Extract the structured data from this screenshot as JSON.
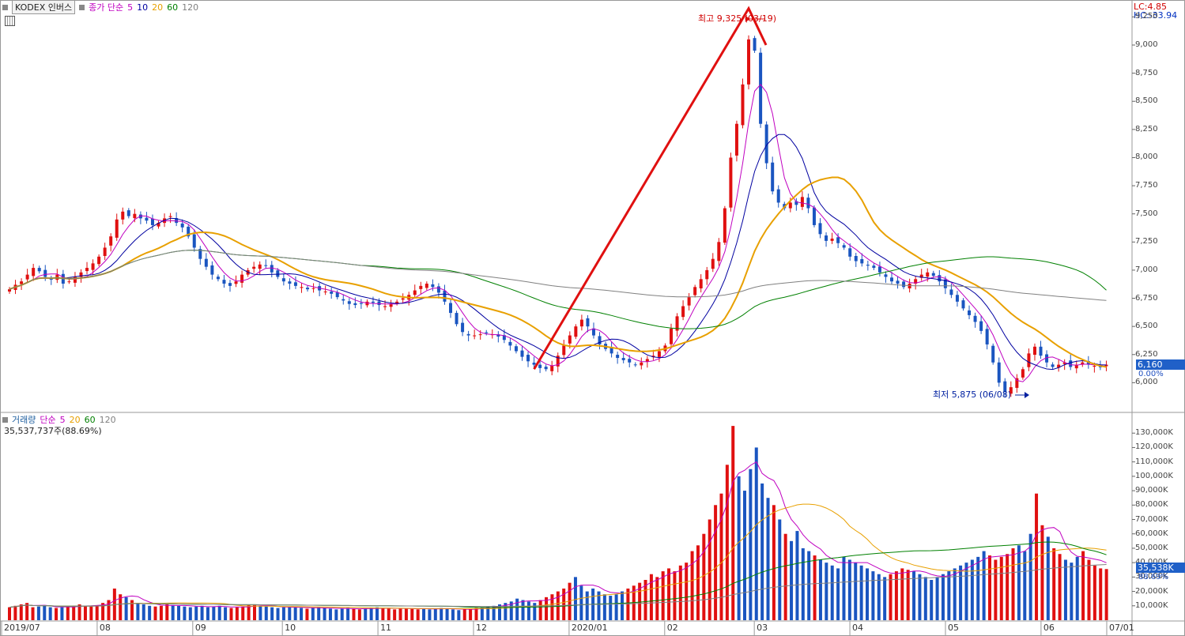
{
  "price_panel": {
    "title": "KODEX 인버스",
    "ma_label": "종가 단순",
    "ma_periods": [
      {
        "label": "5",
        "color": "#c000c0"
      },
      {
        "label": "10",
        "color": "#0000a0"
      },
      {
        "label": "20",
        "color": "#e8a000"
      },
      {
        "label": "60",
        "color": "#008000"
      },
      {
        "label": "120",
        "color": "#808080"
      }
    ],
    "lc_label": "LC:4.85",
    "hc_label": "HC:-33.94",
    "current_price": "6,160",
    "current_change": "0.00%",
    "high_annotation": "최고 9,325 (03/19)",
    "low_annotation": "최저 5,875 (06/08)"
  },
  "volume_panel": {
    "title": "거래량",
    "ma_label": "단순",
    "ma_periods": [
      {
        "label": "5",
        "color": "#c000c0"
      },
      {
        "label": "20",
        "color": "#e8a000"
      },
      {
        "label": "60",
        "color": "#008000"
      },
      {
        "label": "120",
        "color": "#808080"
      }
    ],
    "volume_text": "35,537,737주(88.69%)",
    "current_volume": "35,538K",
    "current_ratio": "88.69%"
  },
  "chart_data": [
    {
      "type": "candlestick",
      "title": "KODEX 인버스",
      "price_ticks": [
        "9,250",
        "9,000",
        "8,750",
        "8,500",
        "8,250",
        "8,000",
        "7,750",
        "7,500",
        "7,250",
        "7,000",
        "6,750",
        "6,500",
        "6,250",
        "6,000"
      ],
      "x_ticks": [
        "2019/07",
        "08",
        "09",
        "10",
        "11",
        "12",
        "2020/01",
        "02",
        "03",
        "04",
        "05",
        "06",
        "07/01"
      ],
      "ylim": [
        5750,
        9330
      ],
      "high": {
        "value": 9325,
        "date": "03/19"
      },
      "low": {
        "value": 5875,
        "date": "06/08"
      },
      "close_series_approx": [
        6830,
        6870,
        6900,
        6960,
        7020,
        6990,
        6940,
        6920,
        6960,
        6880,
        6900,
        6940,
        6980,
        7020,
        7060,
        7120,
        7200,
        7300,
        7450,
        7520,
        7480,
        7500,
        7460,
        7440,
        7400,
        7420,
        7460,
        7480,
        7420,
        7380,
        7300,
        7200,
        7100,
        7030,
        6960,
        6920,
        6880,
        6860,
        6900,
        6960,
        7000,
        7030,
        7050,
        7040,
        6980,
        6940,
        6900,
        6880,
        6860,
        6850,
        6830,
        6840,
        6820,
        6810,
        6790,
        6760,
        6730,
        6700,
        6690,
        6700,
        6720,
        6710,
        6690,
        6680,
        6700,
        6720,
        6750,
        6780,
        6820,
        6860,
        6880,
        6850,
        6800,
        6720,
        6620,
        6520,
        6450,
        6420,
        6420,
        6430,
        6440,
        6430,
        6410,
        6380,
        6330,
        6280,
        6230,
        6190,
        6160,
        6130,
        6120,
        6150,
        6240,
        6330,
        6420,
        6500,
        6560,
        6500,
        6420,
        6340,
        6300,
        6260,
        6220,
        6200,
        6180,
        6160,
        6180,
        6210,
        6240,
        6280,
        6330,
        6480,
        6590,
        6680,
        6760,
        6850,
        6920,
        7000,
        7100,
        7250,
        7550,
        8000,
        8300,
        8650,
        9050,
        8950,
        8300,
        7950,
        7700,
        7600,
        7550,
        7600,
        7580,
        7650,
        7550,
        7400,
        7320,
        7260,
        7280,
        7240,
        7200,
        7120,
        7080,
        7060,
        7040,
        7020,
        6980,
        6940,
        6900,
        6880,
        6850,
        6880,
        6920,
        6960,
        6980,
        6950,
        6900,
        6840,
        6780,
        6720,
        6660,
        6600,
        6540,
        6460,
        6340,
        6180,
        6000,
        5920,
        5960,
        6040,
        6120,
        6260,
        6320,
        6240,
        6180,
        6140,
        6160,
        6180,
        6140,
        6160,
        6180,
        6160,
        6150,
        6140,
        6160
      ],
      "ma_periods": [
        5,
        10,
        20,
        60,
        120
      ]
    },
    {
      "type": "bar",
      "title": "거래량",
      "y_ticks": [
        "130,000K",
        "120,000K",
        "110,000K",
        "100,000K",
        "90,000K",
        "80,000K",
        "70,000K",
        "60,000K",
        "50,000K",
        "40,000K",
        "30,000K",
        "20,000K",
        "10,000K"
      ],
      "ylim": [
        0,
        140000
      ],
      "unit": "K shares",
      "last_volume": 35538,
      "volume_series_approx_k": [
        9000,
        10000,
        11000,
        12000,
        9000,
        9500,
        10500,
        9000,
        8500,
        9000,
        9500,
        10000,
        11000,
        10000,
        9500,
        10500,
        12000,
        14000,
        22000,
        18000,
        16000,
        14000,
        12000,
        11000,
        10000,
        9500,
        10000,
        11000,
        10500,
        10000,
        9500,
        9000,
        9500,
        10000,
        9000,
        9500,
        10000,
        9000,
        8500,
        9000,
        9500,
        10500,
        11000,
        10000,
        9500,
        9000,
        8500,
        9000,
        9500,
        9000,
        8500,
        8000,
        8500,
        9000,
        8500,
        8000,
        7500,
        8000,
        8500,
        8000,
        7500,
        8000,
        8500,
        9000,
        8500,
        8000,
        7500,
        8000,
        8500,
        8000,
        7500,
        8000,
        7500,
        8000,
        8500,
        8000,
        7500,
        7000,
        7500,
        8000,
        8500,
        9000,
        9500,
        10000,
        11000,
        12000,
        13000,
        15000,
        14000,
        13000,
        12000,
        14000,
        16000,
        18000,
        20000,
        22000,
        26000,
        30000,
        24000,
        20000,
        22000,
        20000,
        18000,
        17000,
        18000,
        20000,
        22000,
        24000,
        26000,
        28000,
        32000,
        30000,
        34000,
        36000,
        34000,
        38000,
        40000,
        48000,
        52000,
        60000,
        70000,
        80000,
        88000,
        108000,
        135000,
        100000,
        90000,
        105000,
        120000,
        95000,
        85000,
        80000,
        70000,
        60000,
        55000,
        62000,
        50000,
        48000,
        45000,
        42000,
        40000,
        38000,
        36000,
        44000,
        42000,
        40000,
        38000,
        36000,
        34000,
        32000,
        30000,
        32000,
        34000,
        36000,
        35000,
        34000,
        32000,
        30000,
        28000,
        30000,
        32000,
        34000,
        36000,
        38000,
        40000,
        42000,
        44000,
        48000,
        45000,
        42000,
        44000,
        46000,
        50000,
        52000,
        48000,
        60000,
        88000,
        66000,
        58000,
        50000,
        46000,
        42000,
        40000,
        44000,
        48000,
        42000,
        38000,
        36000,
        35538
      ]
    }
  ]
}
